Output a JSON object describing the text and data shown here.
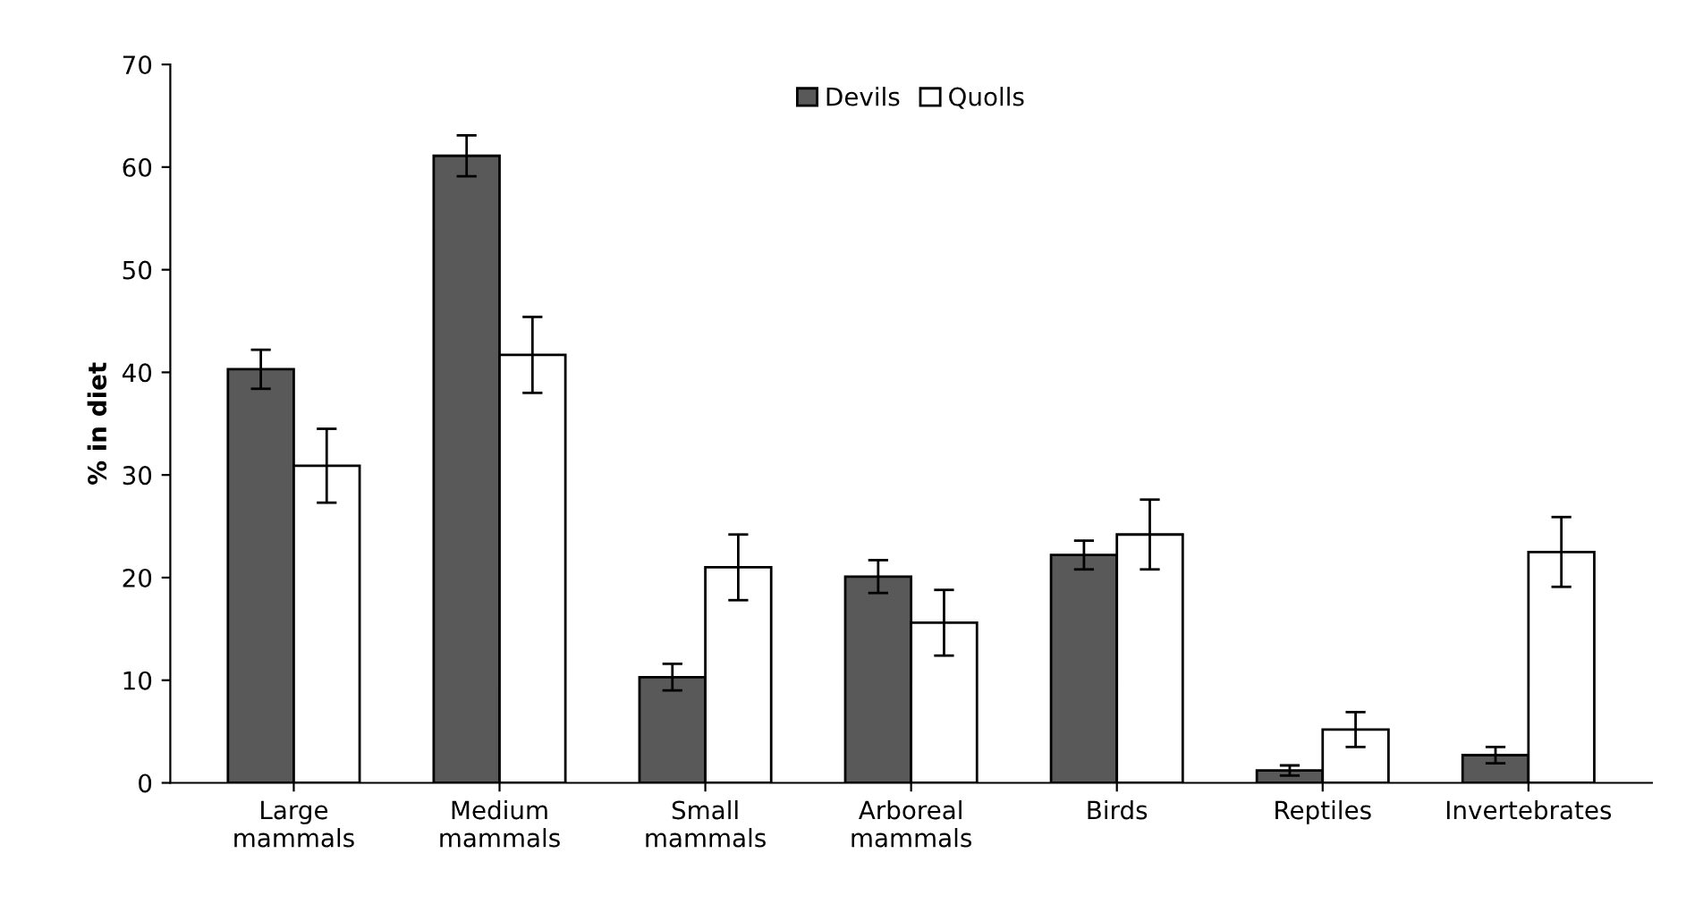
{
  "chart_data": {
    "type": "bar",
    "ylabel": "% in diet",
    "categories": [
      "Large\nmammals",
      "Medium\nmammals",
      "Small\nmammals",
      "Arboreal\nmammals",
      "Birds",
      "Reptiles",
      "Invertebrates"
    ],
    "series": [
      {
        "name": "Devils",
        "color": "#595959",
        "values": [
          40.3,
          61.1,
          10.3,
          20.1,
          22.2,
          1.2,
          2.7
        ],
        "errors": [
          1.9,
          2.0,
          1.3,
          1.6,
          1.4,
          0.5,
          0.8
        ]
      },
      {
        "name": "Quolls",
        "color": "#ffffff",
        "values": [
          30.9,
          41.7,
          21.0,
          15.6,
          24.2,
          5.2,
          22.5
        ],
        "errors": [
          3.6,
          3.7,
          3.2,
          3.2,
          3.4,
          1.7,
          3.4
        ]
      }
    ],
    "ylim": [
      0,
      70
    ],
    "yticks": [
      0,
      10,
      20,
      30,
      40,
      50,
      60,
      70
    ],
    "grid": false,
    "legend": "top"
  }
}
